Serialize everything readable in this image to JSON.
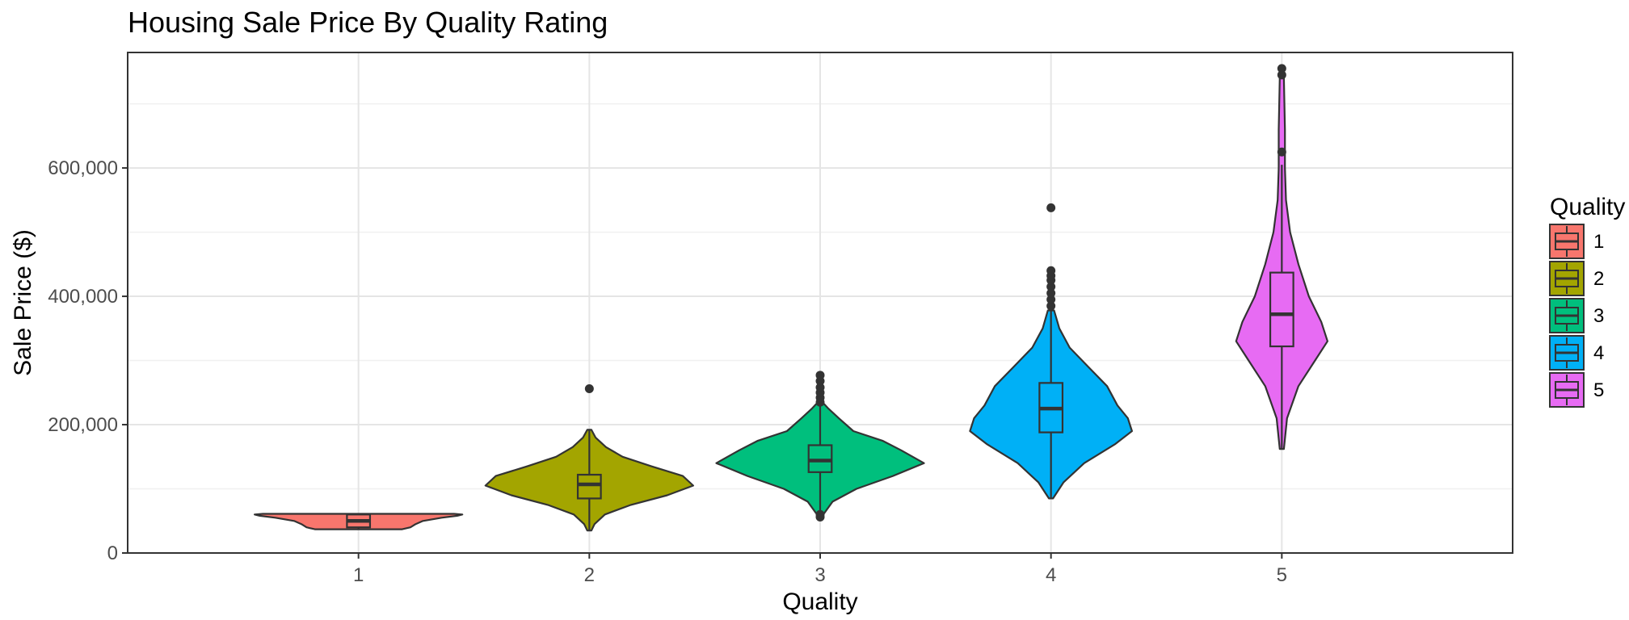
{
  "chart_data": {
    "type": "violin",
    "title": "Housing Sale Price By Quality Rating",
    "xlabel": "Quality",
    "ylabel": "Sale Price ($)",
    "categories": [
      "1",
      "2",
      "3",
      "4",
      "5"
    ],
    "ylim": [
      0,
      780000
    ],
    "yticks": [
      {
        "value": 0,
        "label": "0"
      },
      {
        "value": 200000,
        "label": "200,000"
      },
      {
        "value": 400000,
        "label": "400,000"
      },
      {
        "value": 600000,
        "label": "600,000"
      }
    ],
    "grid": true,
    "legend": {
      "title": "Quality",
      "position": "right"
    },
    "groups": [
      {
        "name": "1",
        "color": "#F8766D",
        "box": {
          "min": 37000,
          "q1": 40000,
          "median": 50000,
          "q3": 60000,
          "max": 61000
        },
        "outliers": [],
        "violin": [
          [
            37000,
            0.42
          ],
          [
            40000,
            0.5
          ],
          [
            45000,
            0.55
          ],
          [
            50000,
            0.62
          ],
          [
            55000,
            0.8
          ],
          [
            58000,
            0.95
          ],
          [
            60000,
            1.0
          ],
          [
            61000,
            0.92
          ]
        ]
      },
      {
        "name": "2",
        "color": "#A3A500",
        "box": {
          "min": 35000,
          "q1": 85000,
          "median": 107000,
          "q3": 122000,
          "max": 192000
        },
        "outliers": [
          256000
        ],
        "violin": [
          [
            35000,
            0.02
          ],
          [
            45000,
            0.05
          ],
          [
            60000,
            0.15
          ],
          [
            75000,
            0.4
          ],
          [
            90000,
            0.75
          ],
          [
            105000,
            1.0
          ],
          [
            120000,
            0.9
          ],
          [
            135000,
            0.6
          ],
          [
            150000,
            0.32
          ],
          [
            165000,
            0.16
          ],
          [
            180000,
            0.06
          ],
          [
            192000,
            0.02
          ]
        ]
      },
      {
        "name": "3",
        "color": "#00BF7D",
        "box": {
          "min": 62000,
          "q1": 126000,
          "median": 144000,
          "q3": 168000,
          "max": 232000
        },
        "outliers": [
          56000,
          60000,
          235000,
          242000,
          250000,
          258000,
          268000,
          277000
        ],
        "violin": [
          [
            62000,
            0.04
          ],
          [
            80000,
            0.12
          ],
          [
            100000,
            0.35
          ],
          [
            120000,
            0.7
          ],
          [
            140000,
            1.0
          ],
          [
            160000,
            0.78
          ],
          [
            175000,
            0.6
          ],
          [
            190000,
            0.32
          ],
          [
            210000,
            0.18
          ],
          [
            225000,
            0.08
          ],
          [
            232000,
            0.04
          ]
        ]
      },
      {
        "name": "4",
        "color": "#00B0F6",
        "box": {
          "min": 85000,
          "q1": 188000,
          "median": 225000,
          "q3": 265000,
          "max": 378000
        },
        "outliers": [
          385000,
          395000,
          405000,
          415000,
          425000,
          432000,
          440000,
          538000
        ],
        "violin": [
          [
            85000,
            0.02
          ],
          [
            110000,
            0.12
          ],
          [
            140000,
            0.32
          ],
          [
            170000,
            0.62
          ],
          [
            190000,
            0.78
          ],
          [
            210000,
            0.74
          ],
          [
            230000,
            0.64
          ],
          [
            260000,
            0.54
          ],
          [
            290000,
            0.36
          ],
          [
            320000,
            0.18
          ],
          [
            350000,
            0.08
          ],
          [
            378000,
            0.03
          ]
        ]
      },
      {
        "name": "5",
        "color": "#E76BF3",
        "box": {
          "min": 162000,
          "q1": 322000,
          "median": 372000,
          "q3": 437000,
          "max": 605000
        },
        "outliers": [
          625000,
          745000,
          755000
        ],
        "violin": [
          [
            162000,
            0.02
          ],
          [
            210000,
            0.05
          ],
          [
            260000,
            0.16
          ],
          [
            300000,
            0.32
          ],
          [
            330000,
            0.44
          ],
          [
            360000,
            0.38
          ],
          [
            400000,
            0.26
          ],
          [
            450000,
            0.16
          ],
          [
            500000,
            0.08
          ],
          [
            550000,
            0.04
          ],
          [
            600000,
            0.03
          ],
          [
            660000,
            0.03
          ],
          [
            740000,
            0.02
          ]
        ]
      }
    ]
  }
}
